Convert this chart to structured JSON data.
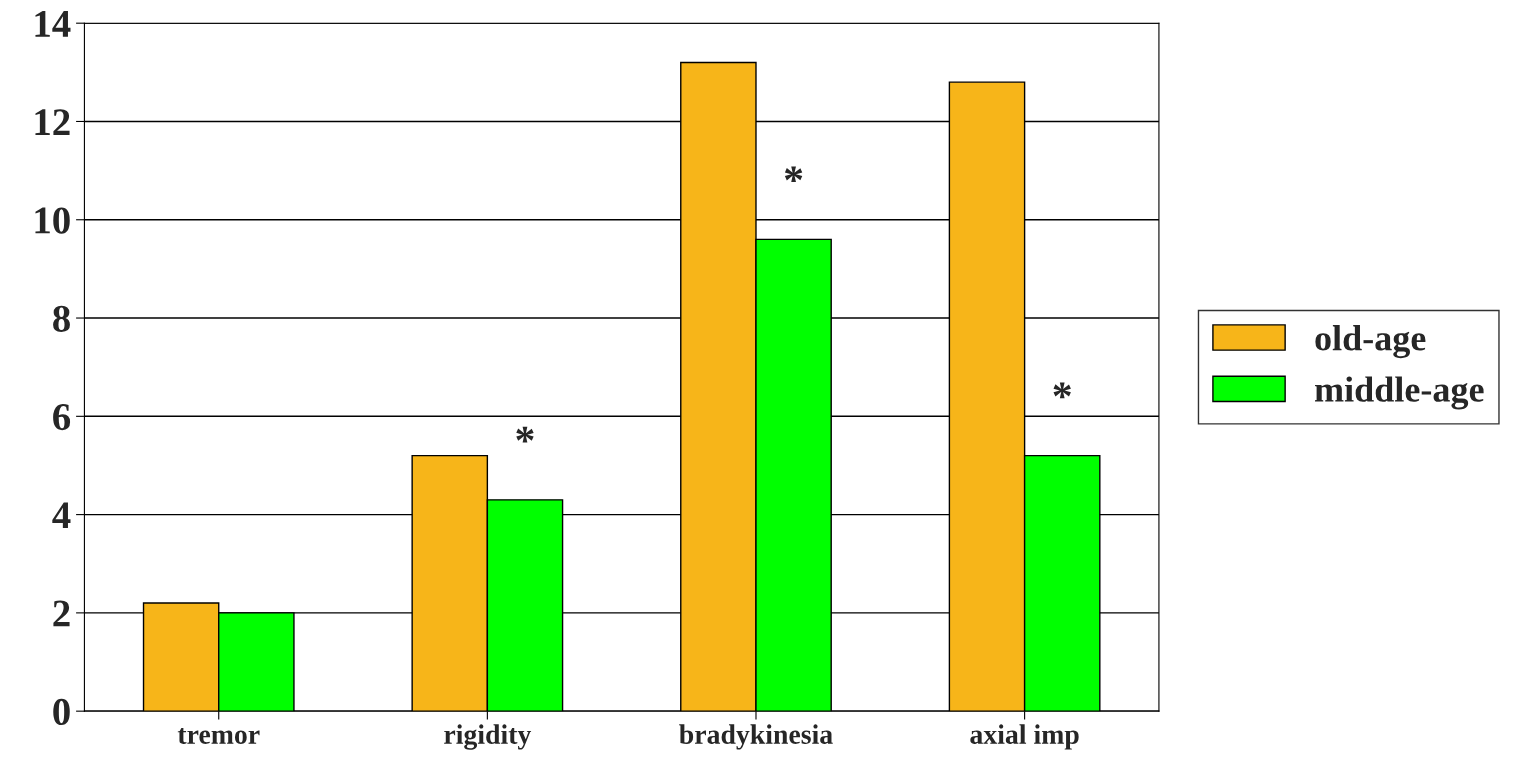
{
  "chart_data": {
    "type": "bar",
    "categories": [
      "tremor",
      "rigidity",
      "bradykinesia",
      "axial imp"
    ],
    "series": [
      {
        "name": "old-age",
        "color": "#f7b519",
        "values": [
          2.2,
          5.2,
          13.2,
          12.8
        ]
      },
      {
        "name": "middle-age",
        "color": "#00ff00",
        "values": [
          2.0,
          4.3,
          9.6,
          5.2
        ]
      }
    ],
    "ylim": [
      0,
      14
    ],
    "yticks": [
      0,
      2,
      4,
      6,
      8,
      10,
      12,
      14
    ],
    "grid": "y",
    "legend": "right",
    "annotations": [
      {
        "text": "*",
        "x": "rigidity",
        "y": 4.3
      },
      {
        "text": "*",
        "x": "bradykinesia",
        "y": 9.6
      },
      {
        "text": "*",
        "x": "axial imp",
        "y": 5.2
      }
    ]
  }
}
